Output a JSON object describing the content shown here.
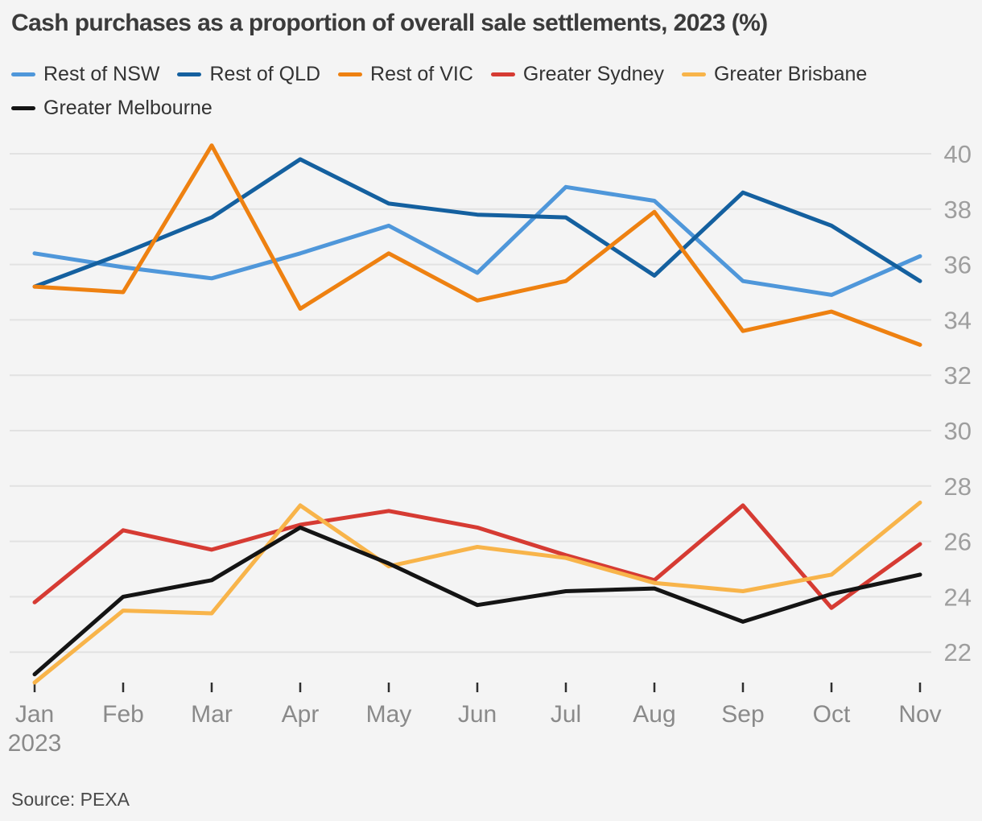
{
  "source": "Source: PEXA",
  "colors": {
    "background": "#f4f4f4",
    "gridline": "#e2e2e2",
    "title_text": "#3b3b3b",
    "legend_text": "#333333",
    "x_axis_label": "#8a8a8a",
    "y_axis_label": "#9e9e9e",
    "tick_mark": "#2f2f2f",
    "source_text": "#4a4a4a"
  },
  "chart_data": {
    "type": "line",
    "title": "Cash purchases as a proportion of overall sale settlements, 2023 (%)",
    "xlabel": "",
    "ylabel": "",
    "legend_position": "top",
    "grid": true,
    "x_categories": [
      "Jan",
      "Feb",
      "Mar",
      "Apr",
      "May",
      "Jun",
      "Jul",
      "Aug",
      "Sep",
      "Oct",
      "Nov"
    ],
    "x_first_label_sub": "2023",
    "y_ticks": [
      40,
      38,
      36,
      34,
      32,
      30,
      28,
      26,
      24,
      22
    ],
    "ylim": [
      20.5,
      40.6
    ],
    "series": [
      {
        "name": "Rest of NSW",
        "color": "#4f97da",
        "values": [
          36.4,
          35.9,
          35.5,
          36.4,
          37.4,
          35.7,
          38.8,
          38.3,
          35.4,
          34.9,
          36.3
        ]
      },
      {
        "name": "Rest of QLD",
        "color": "#14609f",
        "values": [
          35.2,
          36.4,
          37.7,
          39.8,
          38.2,
          37.8,
          37.7,
          35.6,
          38.6,
          37.4,
          35.4
        ]
      },
      {
        "name": "Rest of VIC",
        "color": "#ee8111",
        "values": [
          35.2,
          35.0,
          40.3,
          34.4,
          36.4,
          34.7,
          35.4,
          37.9,
          33.6,
          34.3,
          33.1
        ]
      },
      {
        "name": "Greater Sydney",
        "color": "#d63b33",
        "values": [
          23.8,
          26.4,
          25.7,
          26.6,
          27.1,
          26.5,
          25.5,
          24.6,
          27.3,
          23.6,
          25.9
        ]
      },
      {
        "name": "Greater Brisbane",
        "color": "#f8b44a",
        "values": [
          20.9,
          23.5,
          23.4,
          27.3,
          25.1,
          25.8,
          25.4,
          24.5,
          24.2,
          24.8,
          27.4
        ]
      },
      {
        "name": "Greater Melbourne",
        "color": "#141414",
        "values": [
          21.2,
          24.0,
          24.6,
          26.5,
          25.2,
          23.7,
          24.2,
          24.3,
          23.1,
          24.1,
          24.8
        ]
      }
    ]
  }
}
